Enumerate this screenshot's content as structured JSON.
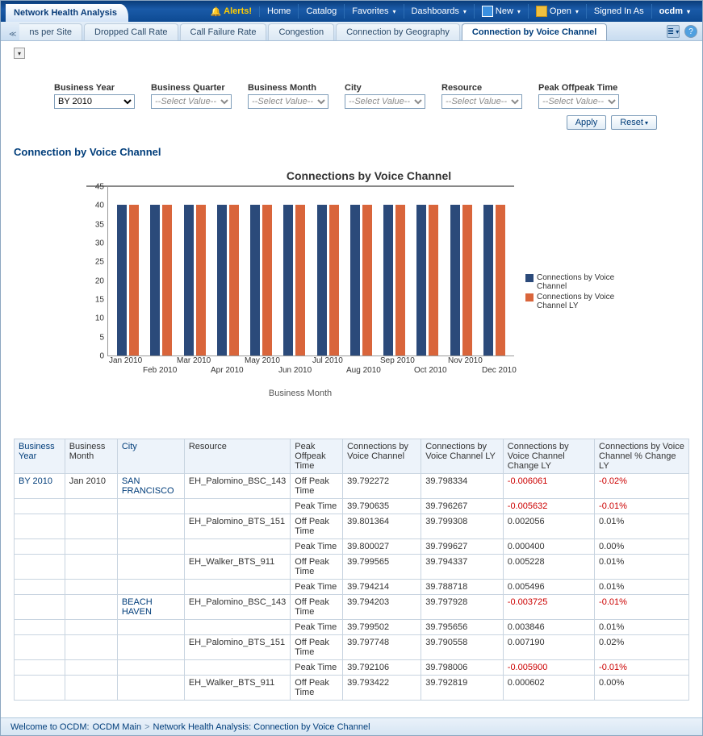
{
  "header": {
    "title": "Network Health Analysis",
    "alerts": "Alerts!",
    "links": [
      "Home",
      "Catalog",
      "Favorites",
      "Dashboards",
      "New",
      "Open",
      "Signed In As"
    ],
    "hasDropdown": [
      false,
      false,
      true,
      true,
      true,
      true,
      false
    ],
    "user": "ocdm"
  },
  "tabs": {
    "partial": "ns per Site",
    "items": [
      "Dropped Call Rate",
      "Call Failure Rate",
      "Congestion",
      "Connection by Geography",
      "Connection by Voice Channel"
    ],
    "activeIndex": 4
  },
  "filters": [
    {
      "label": "Business Year",
      "value": "BY 2010",
      "hasValue": true
    },
    {
      "label": "Business Quarter",
      "value": "--Select Value--",
      "hasValue": false
    },
    {
      "label": "Business Month",
      "value": "--Select Value--",
      "hasValue": false
    },
    {
      "label": "City",
      "value": "--Select Value--",
      "hasValue": false
    },
    {
      "label": "Resource",
      "value": "--Select Value--",
      "hasValue": false
    },
    {
      "label": "Peak Offpeak Time",
      "value": "--Select Value--",
      "hasValue": false
    }
  ],
  "actions": {
    "apply": "Apply",
    "reset": "Reset"
  },
  "section_title": "Connection by Voice Channel",
  "chart": {
    "type": "bar",
    "title": "Connections by Voice Channel",
    "xaxis_title": "Business Month",
    "categories": [
      "Jan 2010",
      "Feb 2010",
      "Mar 2010",
      "Apr 2010",
      "May 2010",
      "Jun 2010",
      "Jul 2010",
      "Aug 2010",
      "Sep 2010",
      "Oct 2010",
      "Nov 2010",
      "Dec 2010"
    ],
    "series": [
      {
        "name": "Connections by Voice Channel",
        "color": "#2b4a7a",
        "values": [
          40,
          40,
          40,
          40,
          40,
          40,
          40,
          40,
          40,
          40,
          40,
          40
        ]
      },
      {
        "name": "Connections by Voice Channel LY",
        "color": "#d9653b",
        "values": [
          40,
          40,
          40,
          40,
          40,
          40,
          40,
          40,
          40,
          40,
          40,
          40
        ]
      }
    ],
    "ylim": [
      0,
      45
    ],
    "ytick_step": 5,
    "background_color": "#ffffff",
    "axis_color": "#999999",
    "label_fontsize": 10
  },
  "table": {
    "columns": [
      "Business Year",
      "Business Month",
      "City",
      "Resource",
      "Peak Offpeak Time",
      "Connections by Voice Channel",
      "Connections by Voice Channel LY",
      "Connections by Voice Channel Change LY",
      "Connections by Voice Channel % Change LY"
    ],
    "linkCols": [
      true,
      false,
      true,
      false,
      false,
      false,
      false,
      false,
      false
    ],
    "rows": [
      {
        "year": "BY 2010",
        "month": "Jan 2010",
        "city": "SAN FRANCISCO",
        "resource": "EH_Palomino_BSC_143",
        "peak": "Off Peak Time",
        "v": "39.792272",
        "ly": "39.798334",
        "chg": "-0.006061",
        "pct": "-0.02%",
        "neg": true
      },
      {
        "year": "",
        "month": "",
        "city": "",
        "resource": "",
        "peak": "Peak Time",
        "v": "39.790635",
        "ly": "39.796267",
        "chg": "-0.005632",
        "pct": "-0.01%",
        "neg": true
      },
      {
        "year": "",
        "month": "",
        "city": "",
        "resource": "EH_Palomino_BTS_151",
        "peak": "Off Peak Time",
        "v": "39.801364",
        "ly": "39.799308",
        "chg": "0.002056",
        "pct": "0.01%",
        "neg": false
      },
      {
        "year": "",
        "month": "",
        "city": "",
        "resource": "",
        "peak": "Peak Time",
        "v": "39.800027",
        "ly": "39.799627",
        "chg": "0.000400",
        "pct": "0.00%",
        "neg": false
      },
      {
        "year": "",
        "month": "",
        "city": "",
        "resource": "EH_Walker_BTS_911",
        "peak": "Off Peak Time",
        "v": "39.799565",
        "ly": "39.794337",
        "chg": "0.005228",
        "pct": "0.01%",
        "neg": false
      },
      {
        "year": "",
        "month": "",
        "city": "",
        "resource": "",
        "peak": "Peak Time",
        "v": "39.794214",
        "ly": "39.788718",
        "chg": "0.005496",
        "pct": "0.01%",
        "neg": false
      },
      {
        "year": "",
        "month": "",
        "city": "BEACH HAVEN",
        "resource": "EH_Palomino_BSC_143",
        "peak": "Off Peak Time",
        "v": "39.794203",
        "ly": "39.797928",
        "chg": "-0.003725",
        "pct": "-0.01%",
        "neg": true
      },
      {
        "year": "",
        "month": "",
        "city": "",
        "resource": "",
        "peak": "Peak Time",
        "v": "39.799502",
        "ly": "39.795656",
        "chg": "0.003846",
        "pct": "0.01%",
        "neg": false
      },
      {
        "year": "",
        "month": "",
        "city": "",
        "resource": "EH_Palomino_BTS_151",
        "peak": "Off Peak Time",
        "v": "39.797748",
        "ly": "39.790558",
        "chg": "0.007190",
        "pct": "0.02%",
        "neg": false
      },
      {
        "year": "",
        "month": "",
        "city": "",
        "resource": "",
        "peak": "Peak Time",
        "v": "39.792106",
        "ly": "39.798006",
        "chg": "-0.005900",
        "pct": "-0.01%",
        "neg": true
      },
      {
        "year": "",
        "month": "",
        "city": "",
        "resource": "EH_Walker_BTS_911",
        "peak": "Off Peak Time",
        "v": "39.793422",
        "ly": "39.792819",
        "chg": "0.000602",
        "pct": "0.00%",
        "neg": false
      }
    ]
  },
  "breadcrumb": {
    "prefix": "Welcome to OCDM:",
    "root": "OCDM Main",
    "current": "Network Health Analysis: Connection by Voice Channel"
  }
}
